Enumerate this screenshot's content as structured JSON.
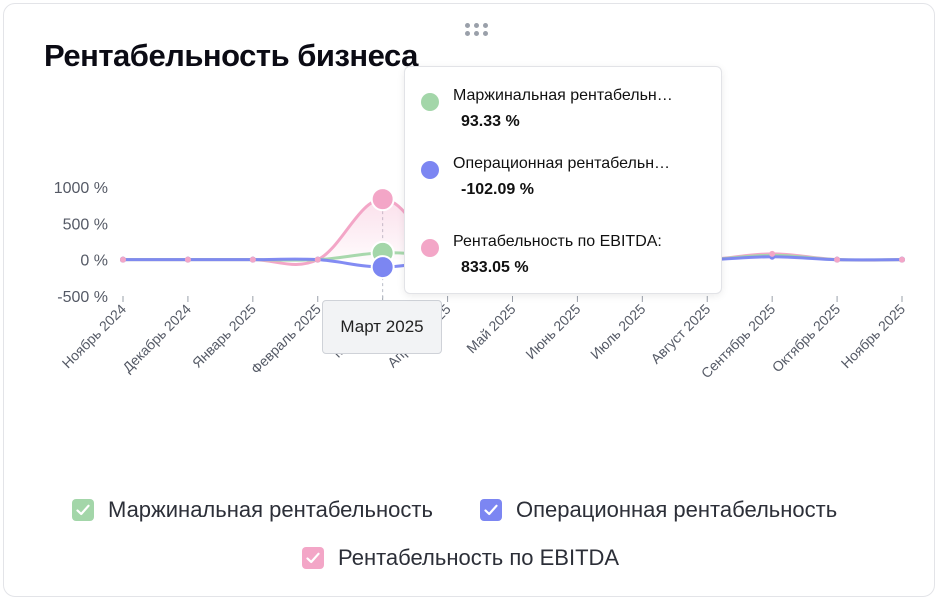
{
  "title": "Рентабельность бизнеса",
  "colors": {
    "margin": "#a3d6a9",
    "operating": "#7c86f2",
    "ebitda": "#f3a6c7"
  },
  "tooltip": {
    "items": [
      {
        "name": "Маржинальная рентабельн…",
        "value": "93.33 %",
        "color_key": "margin"
      },
      {
        "name": "Операционная рентабельн…",
        "value": "-102.09 %",
        "color_key": "operating"
      },
      {
        "name": "Рентабельность по EBITDA:",
        "value": "833.05 %",
        "color_key": "ebitda"
      }
    ]
  },
  "x_tooltip_label": "Март 2025",
  "legend": [
    {
      "label": "Маржинальная рентабельность",
      "color_key": "margin",
      "checked": true
    },
    {
      "label": "Операционная рентабельность",
      "color_key": "operating",
      "checked": true
    },
    {
      "label": "Рентабельность по EBITDA",
      "color_key": "ebitda",
      "checked": true
    }
  ],
  "chart_data": {
    "type": "line",
    "title": "Рентабельность бизнеса",
    "categories": [
      "Ноябрь 2024",
      "Декабрь 2024",
      "Январь 2025",
      "Февраль 2025",
      "Март 2025",
      "Апрель 2025",
      "Май 2025",
      "Июнь 2025",
      "Июль 2025",
      "Август 2025",
      "Сентябрь 2025",
      "Октябрь 2025",
      "Ноябрь 2025"
    ],
    "y_ticks": [
      "1000 %",
      "500 %",
      "0 %",
      "-500 %"
    ],
    "ylim": [
      -500,
      1000
    ],
    "active_index": 4,
    "series": [
      {
        "name": "Маржинальная рентабельность",
        "color_key": "margin",
        "values": [
          0,
          0,
          0,
          0,
          93.33,
          50,
          0,
          0,
          0,
          0,
          60,
          0,
          0
        ]
      },
      {
        "name": "Операционная рентабельность",
        "color_key": "operating",
        "values": [
          0,
          0,
          0,
          0,
          -102.09,
          0,
          0,
          0,
          0,
          0,
          40,
          0,
          0
        ]
      },
      {
        "name": "Рентабельность по EBITDA",
        "color_key": "ebitda",
        "values": [
          0,
          0,
          0,
          0,
          833.05,
          0,
          0,
          0,
          0,
          0,
          80,
          0,
          0
        ]
      }
    ],
    "grid": false,
    "legend_position": "bottom"
  }
}
